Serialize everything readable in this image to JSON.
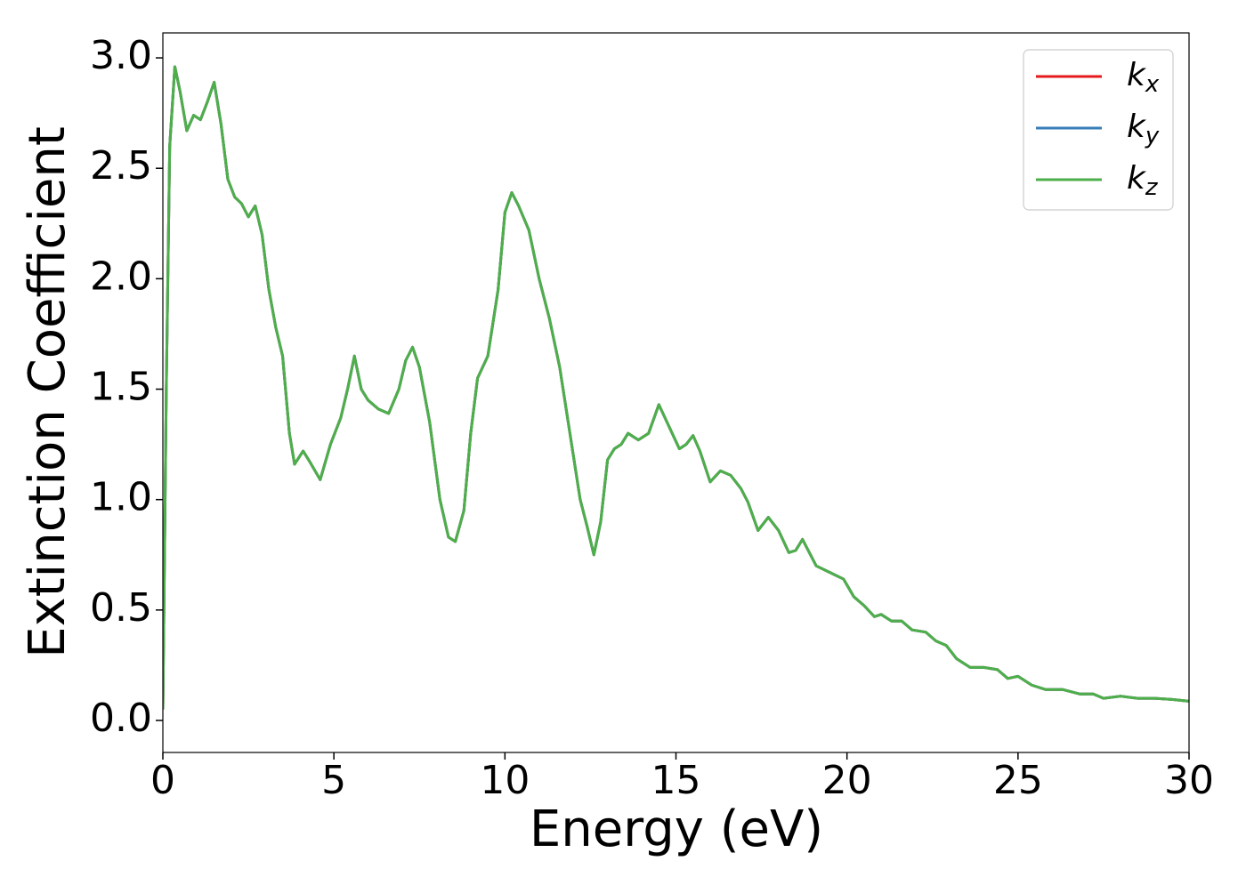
{
  "chart_data": {
    "type": "line",
    "xlabel": "Energy (eV)",
    "ylabel": "Extinction Coefficient",
    "x": [
      0,
      0.1,
      0.2,
      0.35,
      0.5,
      0.7,
      0.9,
      1.1,
      1.3,
      1.5,
      1.7,
      1.9,
      2.1,
      2.3,
      2.5,
      2.7,
      2.9,
      3.1,
      3.3,
      3.5,
      3.7,
      3.85,
      4.1,
      4.3,
      4.6,
      4.9,
      5.2,
      5.4,
      5.6,
      5.8,
      6.0,
      6.3,
      6.6,
      6.9,
      7.1,
      7.3,
      7.5,
      7.8,
      8.1,
      8.35,
      8.55,
      8.8,
      9.0,
      9.2,
      9.5,
      9.8,
      10.0,
      10.2,
      10.4,
      10.7,
      11.0,
      11.3,
      11.6,
      11.9,
      12.2,
      12.4,
      12.6,
      12.8,
      13.0,
      13.2,
      13.4,
      13.6,
      13.9,
      14.2,
      14.5,
      14.8,
      15.1,
      15.3,
      15.5,
      15.7,
      16.0,
      16.3,
      16.6,
      16.9,
      17.1,
      17.4,
      17.7,
      18.0,
      18.3,
      18.5,
      18.7,
      18.9,
      19.1,
      19.5,
      19.9,
      20.2,
      20.5,
      20.8,
      21.0,
      21.3,
      21.6,
      21.9,
      22.3,
      22.6,
      22.9,
      23.2,
      23.6,
      24.0,
      24.4,
      24.7,
      25.0,
      25.4,
      25.8,
      26.3,
      26.8,
      27.2,
      27.5,
      28.0,
      28.5,
      29.0,
      29.5,
      30.0
    ],
    "series": [
      {
        "name": "kx",
        "color": "#e41a1c",
        "values": [
          0.05,
          1.5,
          2.6,
          2.96,
          2.85,
          2.67,
          2.74,
          2.72,
          2.8,
          2.89,
          2.7,
          2.45,
          2.37,
          2.34,
          2.28,
          2.33,
          2.2,
          1.95,
          1.78,
          1.65,
          1.3,
          1.16,
          1.22,
          1.17,
          1.09,
          1.25,
          1.37,
          1.5,
          1.65,
          1.5,
          1.45,
          1.41,
          1.39,
          1.5,
          1.63,
          1.69,
          1.6,
          1.35,
          1.0,
          0.83,
          0.81,
          0.95,
          1.3,
          1.55,
          1.65,
          1.95,
          2.3,
          2.39,
          2.33,
          2.22,
          2.0,
          1.82,
          1.6,
          1.3,
          1.0,
          0.88,
          0.75,
          0.9,
          1.18,
          1.23,
          1.25,
          1.3,
          1.27,
          1.3,
          1.43,
          1.33,
          1.23,
          1.25,
          1.29,
          1.22,
          1.08,
          1.13,
          1.11,
          1.05,
          0.99,
          0.86,
          0.92,
          0.86,
          0.76,
          0.77,
          0.82,
          0.76,
          0.7,
          0.67,
          0.64,
          0.56,
          0.52,
          0.47,
          0.48,
          0.45,
          0.45,
          0.41,
          0.4,
          0.36,
          0.34,
          0.28,
          0.24,
          0.24,
          0.23,
          0.19,
          0.2,
          0.16,
          0.14,
          0.14,
          0.12,
          0.12,
          0.1,
          0.11,
          0.1,
          0.1,
          0.095,
          0.087
        ]
      },
      {
        "name": "ky",
        "color": "#377eb8",
        "values": [
          0.05,
          1.5,
          2.6,
          2.96,
          2.85,
          2.67,
          2.74,
          2.72,
          2.8,
          2.89,
          2.7,
          2.45,
          2.37,
          2.34,
          2.28,
          2.33,
          2.2,
          1.95,
          1.78,
          1.65,
          1.3,
          1.16,
          1.22,
          1.17,
          1.09,
          1.25,
          1.37,
          1.5,
          1.65,
          1.5,
          1.45,
          1.41,
          1.39,
          1.5,
          1.63,
          1.69,
          1.6,
          1.35,
          1.0,
          0.83,
          0.81,
          0.95,
          1.3,
          1.55,
          1.65,
          1.95,
          2.3,
          2.39,
          2.33,
          2.22,
          2.0,
          1.82,
          1.6,
          1.3,
          1.0,
          0.88,
          0.75,
          0.9,
          1.18,
          1.23,
          1.25,
          1.3,
          1.27,
          1.3,
          1.43,
          1.33,
          1.23,
          1.25,
          1.29,
          1.22,
          1.08,
          1.13,
          1.11,
          1.05,
          0.99,
          0.86,
          0.92,
          0.86,
          0.76,
          0.77,
          0.82,
          0.76,
          0.7,
          0.67,
          0.64,
          0.56,
          0.52,
          0.47,
          0.48,
          0.45,
          0.45,
          0.41,
          0.4,
          0.36,
          0.34,
          0.28,
          0.24,
          0.24,
          0.23,
          0.19,
          0.2,
          0.16,
          0.14,
          0.14,
          0.12,
          0.12,
          0.1,
          0.11,
          0.1,
          0.1,
          0.095,
          0.087
        ]
      },
      {
        "name": "kz",
        "color": "#4daf4a",
        "values": [
          0.05,
          1.5,
          2.6,
          2.96,
          2.85,
          2.67,
          2.74,
          2.72,
          2.8,
          2.89,
          2.7,
          2.45,
          2.37,
          2.34,
          2.28,
          2.33,
          2.2,
          1.95,
          1.78,
          1.65,
          1.3,
          1.16,
          1.22,
          1.17,
          1.09,
          1.25,
          1.37,
          1.5,
          1.65,
          1.5,
          1.45,
          1.41,
          1.39,
          1.5,
          1.63,
          1.69,
          1.6,
          1.35,
          1.0,
          0.83,
          0.81,
          0.95,
          1.3,
          1.55,
          1.65,
          1.95,
          2.3,
          2.39,
          2.33,
          2.22,
          2.0,
          1.82,
          1.6,
          1.3,
          1.0,
          0.88,
          0.75,
          0.9,
          1.18,
          1.23,
          1.25,
          1.3,
          1.27,
          1.3,
          1.43,
          1.33,
          1.23,
          1.25,
          1.29,
          1.22,
          1.08,
          1.13,
          1.11,
          1.05,
          0.99,
          0.86,
          0.92,
          0.86,
          0.76,
          0.77,
          0.82,
          0.76,
          0.7,
          0.67,
          0.64,
          0.56,
          0.52,
          0.47,
          0.48,
          0.45,
          0.45,
          0.41,
          0.4,
          0.36,
          0.34,
          0.28,
          0.24,
          0.24,
          0.23,
          0.19,
          0.2,
          0.16,
          0.14,
          0.14,
          0.12,
          0.12,
          0.1,
          0.11,
          0.1,
          0.1,
          0.095,
          0.087
        ]
      }
    ],
    "xlim": [
      0,
      30
    ],
    "xticks": [
      0,
      5,
      10,
      15,
      20,
      25,
      30
    ],
    "ylim": [
      -0.145,
      3.113
    ],
    "yticks": [
      {
        "value": 0,
        "label": "0.0"
      },
      0.5,
      {
        "value": 1,
        "label": "1.0"
      },
      1.5,
      {
        "value": 2,
        "label": "2.0"
      },
      2.5,
      {
        "value": 3,
        "label": "3.0"
      }
    ],
    "legend": "upper right"
  }
}
